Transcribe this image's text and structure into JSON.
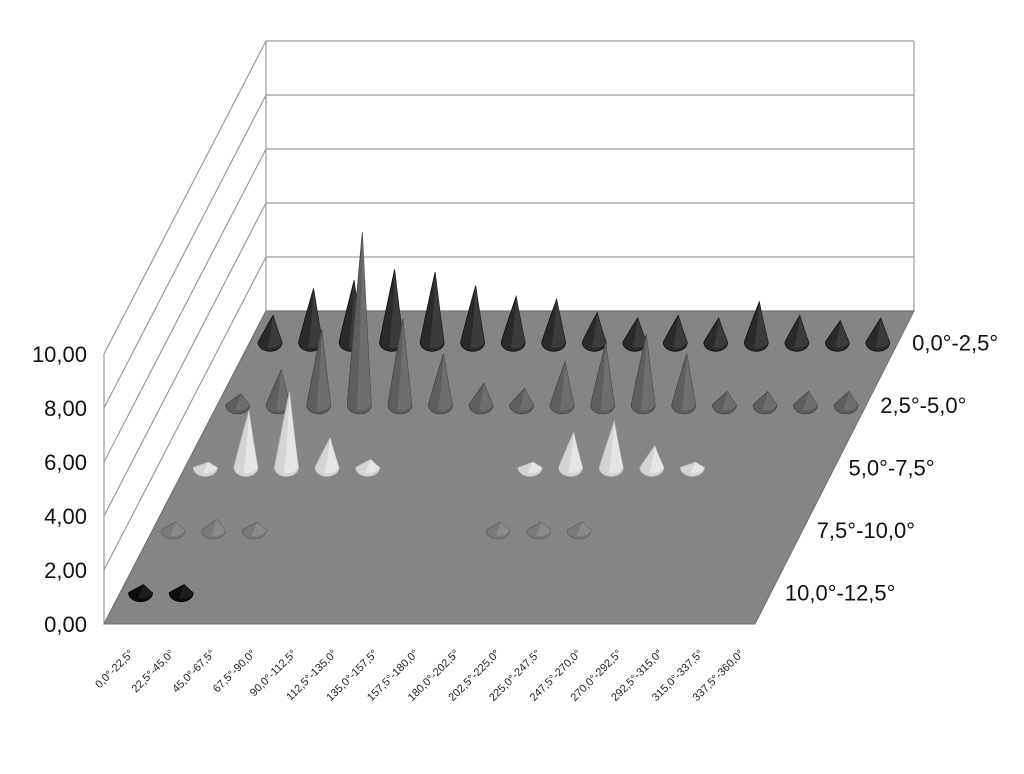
{
  "chart_data": {
    "type": "area",
    "title": "",
    "xlabel": "",
    "ylabel": "",
    "ylim": [
      0,
      10
    ],
    "y_ticks": [
      "0,00",
      "2,00",
      "4,00",
      "6,00",
      "8,00",
      "10,00"
    ],
    "categories": [
      "0,0°-22,5°",
      "22,5°-45,0°",
      "45,0°-67,5°",
      "67,5°-90,0°",
      "90,0°-112,5°",
      "112,5°-135,0°",
      "135,0°-157,5°",
      "157,5°-180,0°",
      "180,0°-202,5°",
      "202,5°-225,0°",
      "225,0°-247,5°",
      "247,5°-270,0°",
      "270,0°-292,5°",
      "292,5°-315,0°",
      "315,0°-337,5°",
      "337,5°-360,0°"
    ],
    "series": [
      {
        "name": "0,0°-2,5°",
        "color": "#2a2a2a",
        "values": [
          1.0,
          2.0,
          2.3,
          2.7,
          2.6,
          2.1,
          1.7,
          1.6,
          1.1,
          0.9,
          1.0,
          0.9,
          1.5,
          1.0,
          0.8,
          0.9
        ]
      },
      {
        "name": "2,5°-5,0°",
        "color": "#5e5e5e",
        "values": [
          0.4,
          1.3,
          2.8,
          6.4,
          3.2,
          1.9,
          0.8,
          0.6,
          1.6,
          2.3,
          2.6,
          1.9,
          0.5,
          0.5,
          0.5,
          0.5
        ]
      },
      {
        "name": "5,0°-7,5°",
        "color": "#d4d4d4",
        "values": [
          0.2,
          2.1,
          2.8,
          1.1,
          0.3,
          0,
          0,
          0,
          0.2,
          1.3,
          1.7,
          0.8,
          0.2,
          0,
          0,
          0
        ]
      },
      {
        "name": "7,5°-10,0°",
        "color": "#7a7a7a",
        "values": [
          0.3,
          0.4,
          0.3,
          0,
          0,
          0,
          0,
          0,
          0.3,
          0.3,
          0.3,
          0,
          0,
          0,
          0,
          0
        ]
      },
      {
        "name": "10,0°-12,5°",
        "color": "#0e0e0e",
        "values": [
          0.3,
          0.3,
          0,
          0,
          0,
          0,
          0,
          0,
          0,
          0,
          0,
          0,
          0,
          0,
          0,
          0
        ]
      }
    ],
    "grid": true,
    "legend": "none"
  }
}
